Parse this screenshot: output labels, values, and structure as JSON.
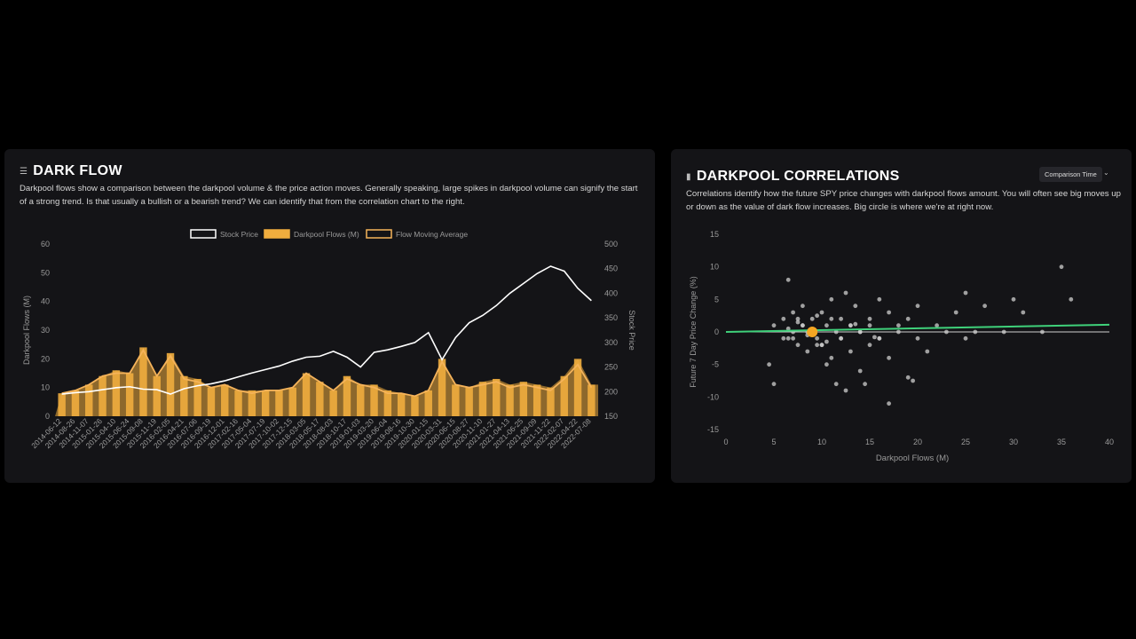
{
  "left": {
    "title": "DARK FLOW",
    "title_icon": "list-icon",
    "description": "Darkpool flows show a comparison between the darkpool volume & the price action moves. Generally speaking, large spikes in darkpool volume can signify the start of a strong trend. Is that usually a bullish or a bearish trend? We can identify that from the correlation chart to the right."
  },
  "right": {
    "title": "DARKPOOL CORRELATIONS",
    "title_icon": "bar-chart-icon",
    "description": "Correlations identify how the future SPY price changes with darkpool flows amount. You will often see big moves up or down as the value of dark flow increases. Big circle is where we're at right now.",
    "dropdown_label": "Comparison Time"
  },
  "colors": {
    "flows": "#f0ad3e",
    "moving_average": "#f5b35a",
    "price": "#ffffff",
    "regression": "#3fd17a",
    "current": "#f5a623"
  },
  "chart_data": [
    {
      "type": "bar",
      "xlabel": "",
      "ylabel": "Darkpool Flows (M)",
      "y2label": "Stock Price",
      "ylim": [
        0,
        60
      ],
      "y2lim": [
        150,
        500
      ],
      "yticks": [
        0,
        10,
        20,
        30,
        40,
        50,
        60
      ],
      "y2ticks": [
        150,
        200,
        250,
        300,
        350,
        400,
        450,
        500
      ],
      "legend_position": "top",
      "categories": [
        "2014-06-12",
        "2014-08-26",
        "2014-11-07",
        "2015-01-26",
        "2015-04-10",
        "2015-06-24",
        "2015-09-08",
        "2015-11-19",
        "2016-02-05",
        "2016-04-21",
        "2016-07-06",
        "2016-09-19",
        "2016-12-01",
        "2017-02-16",
        "2017-05-04",
        "2017-07-19",
        "2017-10-02",
        "2017-12-15",
        "2018-03-05",
        "2018-05-17",
        "2018-08-03",
        "2018-10-17",
        "2019-01-03",
        "2019-03-20",
        "2019-06-04",
        "2019-08-16",
        "2019-10-30",
        "2020-01-15",
        "2020-03-31",
        "2020-06-15",
        "2020-08-27",
        "2020-11-10",
        "2021-01-27",
        "2021-04-13",
        "2021-06-25",
        "2021-09-09",
        "2021-11-22",
        "2022-02-07",
        "2022-04-22",
        "2022-07-08"
      ],
      "series": [
        {
          "name": "Stock Price",
          "kind": "line",
          "axis": "right",
          "values": [
            195,
            198,
            200,
            204,
            208,
            210,
            205,
            204,
            195,
            206,
            212,
            216,
            222,
            230,
            238,
            245,
            252,
            262,
            270,
            272,
            282,
            270,
            250,
            280,
            285,
            292,
            300,
            320,
            265,
            310,
            340,
            355,
            375,
            400,
            420,
            440,
            455,
            445,
            410,
            385
          ]
        },
        {
          "name": "Darkpool Flows (M)",
          "kind": "bar",
          "axis": "left",
          "values": [
            8,
            9,
            11,
            14,
            16,
            15,
            24,
            14,
            22,
            14,
            13,
            10,
            11,
            9,
            9,
            9,
            9,
            10,
            15,
            12,
            9,
            14,
            11,
            11,
            9,
            8,
            7,
            9,
            20,
            11,
            10,
            12,
            13,
            11,
            12,
            11,
            10,
            14,
            20,
            11
          ]
        },
        {
          "name": "Flow Moving Average",
          "kind": "line",
          "axis": "left",
          "values": [
            8,
            9,
            11,
            14,
            15,
            15,
            23,
            14,
            21,
            13,
            12,
            10,
            11,
            9,
            8,
            9,
            9,
            10,
            15,
            12,
            9,
            13,
            11,
            10,
            8,
            8,
            7,
            9,
            19,
            11,
            10,
            11,
            12,
            10,
            11,
            10,
            9,
            13,
            18,
            10
          ]
        }
      ]
    },
    {
      "type": "scatter",
      "xlabel": "Darkpool Flows (M)",
      "ylabel": "Future 7 Day Price Change (%)",
      "xlim": [
        0,
        40
      ],
      "ylim": [
        -15,
        15
      ],
      "xticks": [
        0,
        5,
        10,
        15,
        20,
        25,
        30,
        35,
        40
      ],
      "yticks": [
        15,
        10,
        5,
        0,
        -5,
        -10,
        -15
      ],
      "x": [
        5,
        6,
        6.5,
        7,
        7,
        7.5,
        8,
        8,
        8.5,
        9,
        9,
        9.5,
        10,
        10,
        10.5,
        11,
        11,
        11.5,
        12,
        12,
        12.5,
        13,
        13,
        13.5,
        14,
        14,
        15,
        15,
        16,
        16,
        17,
        17,
        18,
        18,
        19,
        19,
        20,
        20,
        21,
        22,
        23,
        24,
        25,
        25,
        26,
        27,
        29,
        30,
        31,
        33,
        35,
        36,
        6.5,
        12.5,
        4.5,
        5,
        7,
        8,
        9,
        10,
        11,
        12,
        13,
        14,
        15,
        16,
        8.5,
        7.5,
        10.5,
        14.5,
        17,
        19.5,
        11.5,
        9.5,
        6,
        6.5,
        7.5,
        8.5,
        9.5,
        10.5,
        13.5,
        15.5
      ],
      "y": [
        1,
        2,
        -1,
        3,
        0,
        -2,
        4,
        1,
        -3,
        2,
        0,
        -1,
        3,
        -2,
        1,
        5,
        -4,
        0,
        2,
        -1,
        6,
        1,
        -3,
        4,
        0,
        -6,
        2,
        -2,
        5,
        -1,
        3,
        -4,
        1,
        0,
        -7,
        2,
        4,
        -1,
        -3,
        1,
        0,
        3,
        6,
        -1,
        0,
        4,
        0,
        5,
        3,
        0,
        10,
        5,
        8,
        -9,
        -5,
        -8,
        -1,
        1,
        0,
        -2,
        2,
        -1,
        1,
        0,
        1,
        -1,
        0,
        2,
        -5,
        -8,
        -11,
        -7.5,
        -8,
        -2,
        -1,
        0.5,
        1.5,
        -0.5,
        2.5,
        -1.5,
        1.2,
        -0.8
      ],
      "current": {
        "x": 9,
        "y": 0
      },
      "regression": {
        "x": [
          0,
          40
        ],
        "y": [
          0,
          1.1
        ]
      }
    }
  ]
}
